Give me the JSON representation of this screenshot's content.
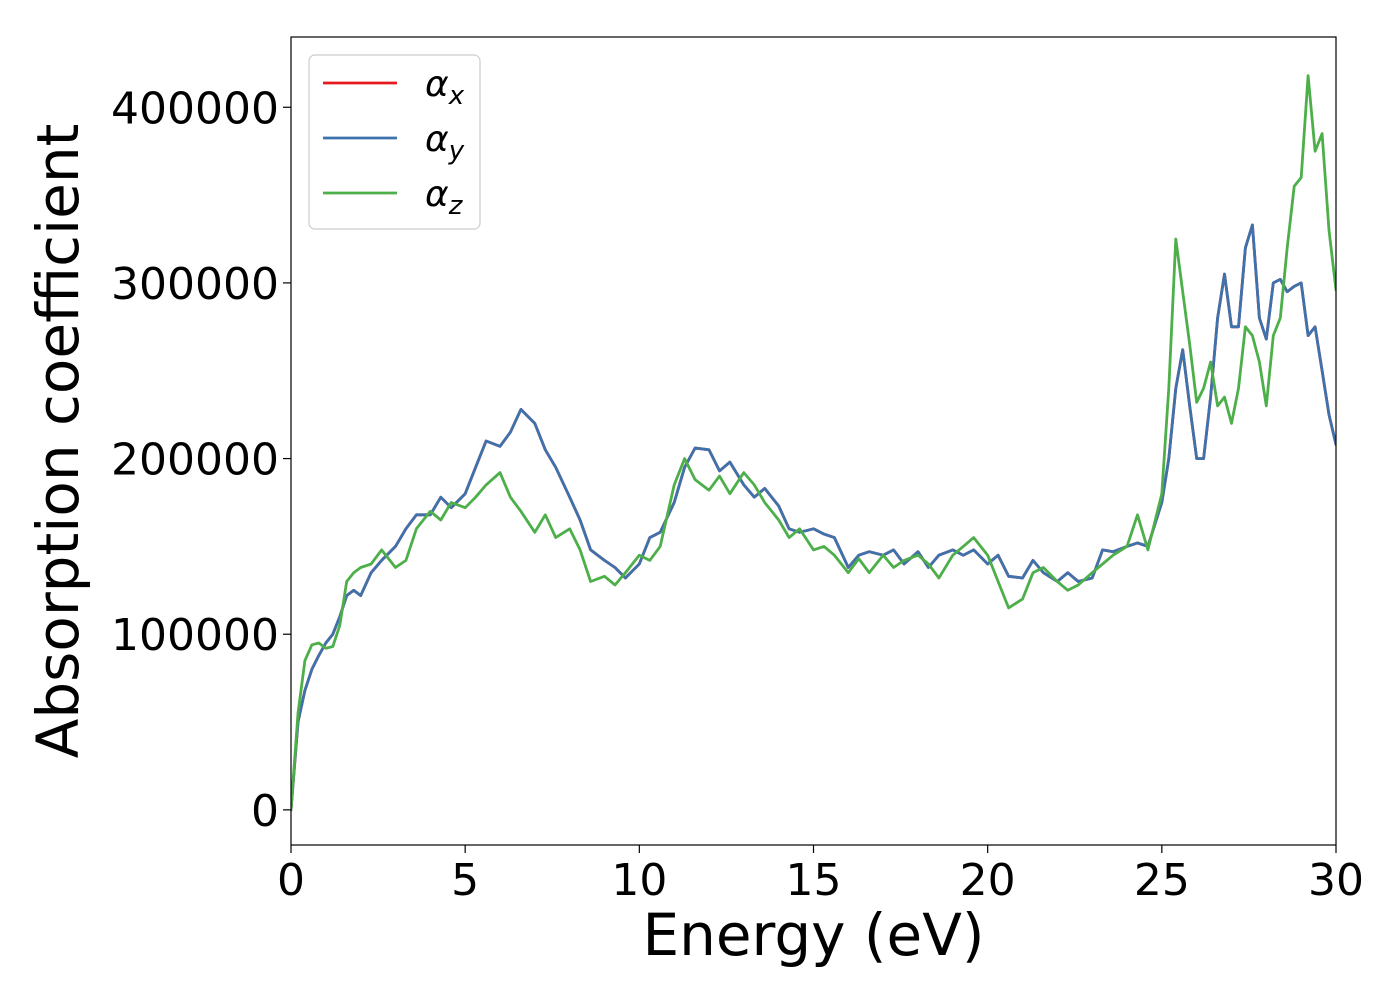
{
  "chart_data": {
    "type": "line",
    "xlabel": "Energy (eV)",
    "ylabel": "Absorption coefficient",
    "xlim": [
      0,
      30
    ],
    "ylim": [
      -20000,
      440000
    ],
    "xticks": [
      0,
      5,
      10,
      15,
      20,
      25,
      30
    ],
    "yticks": [
      0,
      100000,
      200000,
      300000,
      400000
    ],
    "grid": false,
    "legend_position": "top-left",
    "series": [
      {
        "name": "α",
        "subscript": "x",
        "color": "#e41a1c",
        "x": [
          0,
          0.2,
          0.4,
          0.6,
          0.8,
          1.0,
          1.2,
          1.4,
          1.6,
          1.8,
          2.0,
          2.3,
          2.6,
          3.0,
          3.3,
          3.6,
          4.0,
          4.3,
          4.6,
          5.0,
          5.3,
          5.6,
          6.0,
          6.3,
          6.6,
          7.0,
          7.3,
          7.6,
          8.0,
          8.3,
          8.6,
          9.0,
          9.3,
          9.6,
          10.0,
          10.3,
          10.6,
          11.0,
          11.3,
          11.6,
          12.0,
          12.3,
          12.6,
          13.0,
          13.3,
          13.6,
          14.0,
          14.3,
          14.6,
          15.0,
          15.3,
          15.6,
          16.0,
          16.3,
          16.6,
          17.0,
          17.3,
          17.6,
          18.0,
          18.3,
          18.6,
          19.0,
          19.3,
          19.6,
          20.0,
          20.3,
          20.6,
          21.0,
          21.3,
          21.6,
          22.0,
          22.3,
          22.6,
          23.0,
          23.3,
          23.6,
          24.0,
          24.3,
          24.6,
          25.0,
          25.2,
          25.4,
          25.6,
          25.8,
          26.0,
          26.2,
          26.4,
          26.6,
          26.8,
          27.0,
          27.2,
          27.4,
          27.6,
          27.8,
          28.0,
          28.2,
          28.4,
          28.6,
          28.8,
          29.0,
          29.2,
          29.4,
          29.6,
          29.8,
          30.0
        ],
        "values": [
          0,
          50000,
          68000,
          80000,
          88000,
          95000,
          100000,
          110000,
          122000,
          125000,
          122000,
          135000,
          142000,
          150000,
          160000,
          168000,
          168000,
          178000,
          172000,
          180000,
          195000,
          210000,
          207000,
          215000,
          228000,
          220000,
          205000,
          195000,
          178000,
          165000,
          148000,
          142000,
          138000,
          132000,
          140000,
          155000,
          158000,
          175000,
          195000,
          206000,
          205000,
          193000,
          198000,
          185000,
          178000,
          183000,
          173000,
          160000,
          158000,
          160000,
          157000,
          155000,
          138000,
          145000,
          147000,
          145000,
          148000,
          140000,
          147000,
          138000,
          145000,
          148000,
          145000,
          148000,
          140000,
          145000,
          133000,
          132000,
          142000,
          135000,
          130000,
          135000,
          130000,
          132000,
          148000,
          147000,
          150000,
          152000,
          150000,
          175000,
          200000,
          240000,
          262000,
          230000,
          200000,
          200000,
          235000,
          280000,
          305000,
          275000,
          275000,
          320000,
          333000,
          280000,
          268000,
          300000,
          302000,
          295000,
          298000,
          300000,
          270000,
          275000,
          250000,
          225000,
          208000
        ]
      },
      {
        "name": "α",
        "subscript": "y",
        "color": "#3e72ad",
        "x": [
          0,
          0.2,
          0.4,
          0.6,
          0.8,
          1.0,
          1.2,
          1.4,
          1.6,
          1.8,
          2.0,
          2.3,
          2.6,
          3.0,
          3.3,
          3.6,
          4.0,
          4.3,
          4.6,
          5.0,
          5.3,
          5.6,
          6.0,
          6.3,
          6.6,
          7.0,
          7.3,
          7.6,
          8.0,
          8.3,
          8.6,
          9.0,
          9.3,
          9.6,
          10.0,
          10.3,
          10.6,
          11.0,
          11.3,
          11.6,
          12.0,
          12.3,
          12.6,
          13.0,
          13.3,
          13.6,
          14.0,
          14.3,
          14.6,
          15.0,
          15.3,
          15.6,
          16.0,
          16.3,
          16.6,
          17.0,
          17.3,
          17.6,
          18.0,
          18.3,
          18.6,
          19.0,
          19.3,
          19.6,
          20.0,
          20.3,
          20.6,
          21.0,
          21.3,
          21.6,
          22.0,
          22.3,
          22.6,
          23.0,
          23.3,
          23.6,
          24.0,
          24.3,
          24.6,
          25.0,
          25.2,
          25.4,
          25.6,
          25.8,
          26.0,
          26.2,
          26.4,
          26.6,
          26.8,
          27.0,
          27.2,
          27.4,
          27.6,
          27.8,
          28.0,
          28.2,
          28.4,
          28.6,
          28.8,
          29.0,
          29.2,
          29.4,
          29.6,
          29.8,
          30.0
        ],
        "values": [
          0,
          50000,
          68000,
          80000,
          88000,
          95000,
          100000,
          110000,
          122000,
          125000,
          122000,
          135000,
          142000,
          150000,
          160000,
          168000,
          168000,
          178000,
          172000,
          180000,
          195000,
          210000,
          207000,
          215000,
          228000,
          220000,
          205000,
          195000,
          178000,
          165000,
          148000,
          142000,
          138000,
          132000,
          140000,
          155000,
          158000,
          175000,
          195000,
          206000,
          205000,
          193000,
          198000,
          185000,
          178000,
          183000,
          173000,
          160000,
          158000,
          160000,
          157000,
          155000,
          138000,
          145000,
          147000,
          145000,
          148000,
          140000,
          147000,
          138000,
          145000,
          148000,
          145000,
          148000,
          140000,
          145000,
          133000,
          132000,
          142000,
          135000,
          130000,
          135000,
          130000,
          132000,
          148000,
          147000,
          150000,
          152000,
          150000,
          175000,
          200000,
          240000,
          262000,
          230000,
          200000,
          200000,
          235000,
          280000,
          305000,
          275000,
          275000,
          320000,
          333000,
          280000,
          268000,
          300000,
          302000,
          295000,
          298000,
          300000,
          270000,
          275000,
          250000,
          225000,
          208000
        ]
      },
      {
        "name": "α",
        "subscript": "z",
        "color": "#4daf4a",
        "x": [
          0,
          0.2,
          0.4,
          0.6,
          0.8,
          1.0,
          1.2,
          1.4,
          1.6,
          1.8,
          2.0,
          2.3,
          2.6,
          3.0,
          3.3,
          3.6,
          4.0,
          4.3,
          4.6,
          5.0,
          5.3,
          5.6,
          6.0,
          6.3,
          6.6,
          7.0,
          7.3,
          7.6,
          8.0,
          8.3,
          8.6,
          9.0,
          9.3,
          9.6,
          10.0,
          10.3,
          10.6,
          11.0,
          11.3,
          11.6,
          12.0,
          12.3,
          12.6,
          13.0,
          13.3,
          13.6,
          14.0,
          14.3,
          14.6,
          15.0,
          15.3,
          15.6,
          16.0,
          16.3,
          16.6,
          17.0,
          17.3,
          17.6,
          18.0,
          18.3,
          18.6,
          19.0,
          19.3,
          19.6,
          20.0,
          20.3,
          20.6,
          21.0,
          21.3,
          21.6,
          22.0,
          22.3,
          22.6,
          23.0,
          23.3,
          23.6,
          24.0,
          24.3,
          24.6,
          25.0,
          25.2,
          25.4,
          25.6,
          25.8,
          26.0,
          26.2,
          26.4,
          26.6,
          26.8,
          27.0,
          27.2,
          27.4,
          27.6,
          27.8,
          28.0,
          28.2,
          28.4,
          28.6,
          28.8,
          29.0,
          29.2,
          29.4,
          29.6,
          29.8,
          30.0
        ],
        "values": [
          0,
          55000,
          85000,
          94000,
          95000,
          92000,
          93000,
          105000,
          130000,
          135000,
          138000,
          140000,
          148000,
          138000,
          142000,
          160000,
          170000,
          165000,
          175000,
          172000,
          178000,
          185000,
          192000,
          178000,
          170000,
          158000,
          168000,
          155000,
          160000,
          148000,
          130000,
          133000,
          128000,
          135000,
          145000,
          142000,
          150000,
          185000,
          200000,
          188000,
          182000,
          190000,
          180000,
          192000,
          185000,
          175000,
          165000,
          155000,
          160000,
          148000,
          150000,
          145000,
          135000,
          143000,
          135000,
          145000,
          138000,
          142000,
          145000,
          140000,
          132000,
          145000,
          150000,
          155000,
          145000,
          130000,
          115000,
          120000,
          135000,
          138000,
          130000,
          125000,
          128000,
          135000,
          140000,
          145000,
          150000,
          168000,
          148000,
          180000,
          240000,
          325000,
          295000,
          265000,
          232000,
          240000,
          255000,
          230000,
          235000,
          220000,
          240000,
          275000,
          270000,
          255000,
          230000,
          270000,
          280000,
          320000,
          355000,
          360000,
          418000,
          375000,
          385000,
          330000,
          296000
        ]
      }
    ]
  }
}
